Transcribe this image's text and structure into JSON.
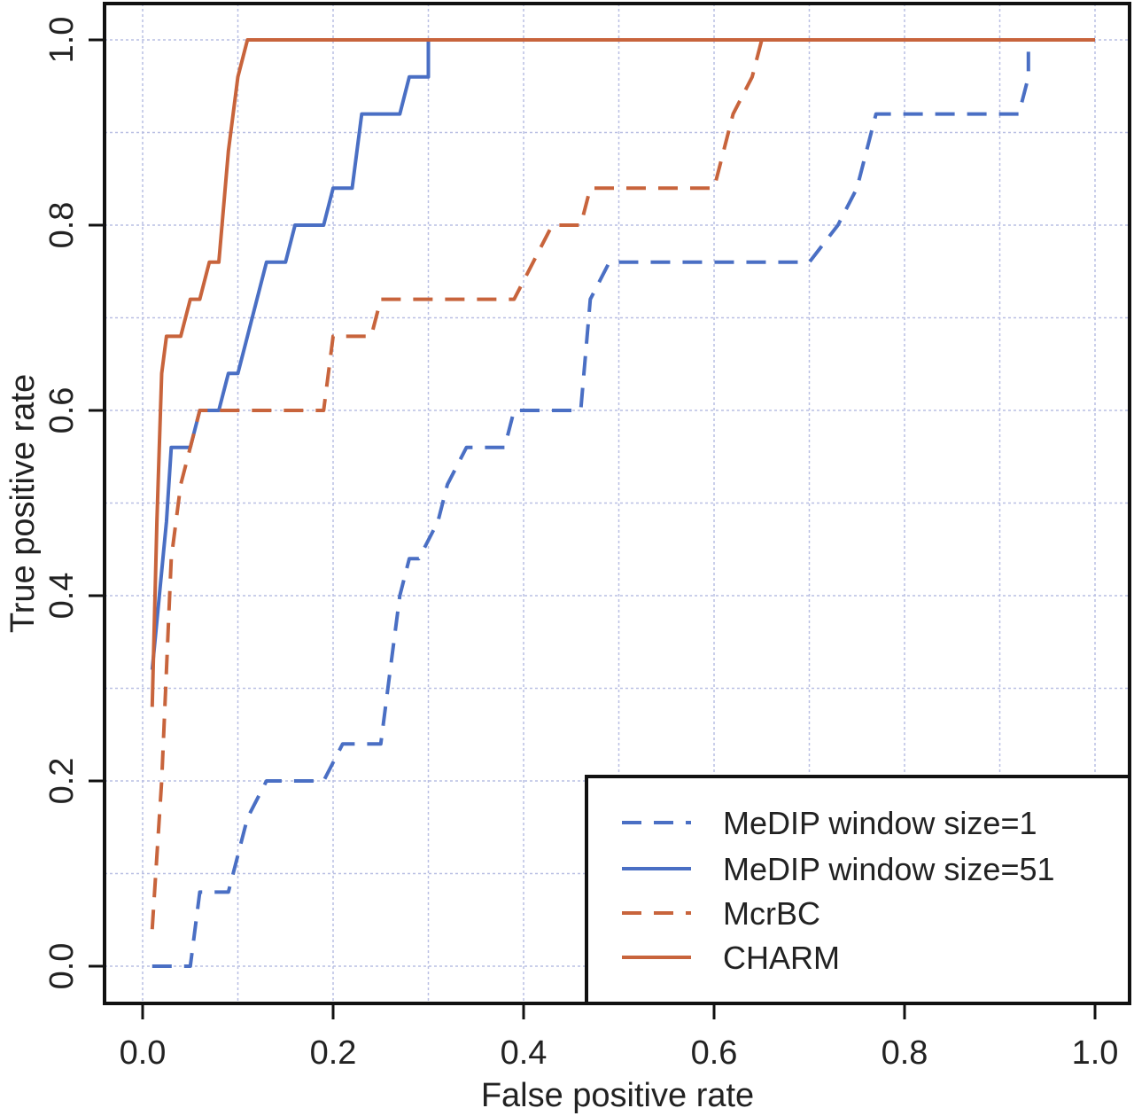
{
  "chart_data": {
    "type": "line",
    "title": "",
    "xlabel": "False positive rate",
    "ylabel": "True positive rate",
    "xlim": [
      0.0,
      1.0
    ],
    "ylim": [
      0.0,
      1.0
    ],
    "x_ticks": [
      "0.0",
      "0.2",
      "0.4",
      "0.6",
      "0.8",
      "1.0"
    ],
    "y_ticks": [
      "0.0",
      "0.2",
      "0.4",
      "0.6",
      "0.8",
      "1.0"
    ],
    "grid": true,
    "grid_step": 0.1,
    "legend_position": "bottom-right",
    "series": [
      {
        "name": "MeDIP window size=1",
        "color": "#4a6fc4",
        "dashed": true,
        "x": [
          0.01,
          0.05,
          0.06,
          0.09,
          0.11,
          0.13,
          0.19,
          0.21,
          0.25,
          0.26,
          0.27,
          0.28,
          0.29,
          0.31,
          0.32,
          0.34,
          0.35,
          0.38,
          0.39,
          0.41,
          0.46,
          0.47,
          0.49,
          0.7,
          0.73,
          0.75,
          0.77,
          0.79,
          0.92,
          0.93,
          0.93
        ],
        "y": [
          0.0,
          0.0,
          0.08,
          0.08,
          0.16,
          0.2,
          0.2,
          0.24,
          0.24,
          0.32,
          0.4,
          0.44,
          0.44,
          0.48,
          0.52,
          0.56,
          0.56,
          0.56,
          0.6,
          0.6,
          0.6,
          0.72,
          0.76,
          0.76,
          0.8,
          0.84,
          0.92,
          0.92,
          0.92,
          0.96,
          1.0
        ]
      },
      {
        "name": "MeDIP window size=51",
        "color": "#4a6fc4",
        "dashed": false,
        "x": [
          0.01,
          0.025,
          0.03,
          0.05,
          0.06,
          0.08,
          0.09,
          0.1,
          0.11,
          0.13,
          0.14,
          0.15,
          0.16,
          0.17,
          0.18,
          0.19,
          0.2,
          0.21,
          0.22,
          0.23,
          0.24,
          0.25,
          0.27,
          0.28,
          0.29,
          0.3,
          0.3
        ],
        "y": [
          0.32,
          0.48,
          0.56,
          0.56,
          0.6,
          0.6,
          0.64,
          0.64,
          0.68,
          0.76,
          0.76,
          0.76,
          0.8,
          0.8,
          0.8,
          0.8,
          0.84,
          0.84,
          0.84,
          0.92,
          0.92,
          0.92,
          0.92,
          0.96,
          0.96,
          0.96,
          1.0
        ]
      },
      {
        "name": "McrBC",
        "color": "#c8643c",
        "dashed": true,
        "x": [
          0.01,
          0.02,
          0.03,
          0.04,
          0.05,
          0.06,
          0.19,
          0.2,
          0.24,
          0.25,
          0.39,
          0.41,
          0.43,
          0.46,
          0.47,
          0.6,
          0.62,
          0.64,
          0.65,
          1.0
        ],
        "y": [
          0.04,
          0.2,
          0.44,
          0.52,
          0.56,
          0.6,
          0.6,
          0.68,
          0.68,
          0.72,
          0.72,
          0.76,
          0.8,
          0.8,
          0.84,
          0.84,
          0.92,
          0.96,
          1.0,
          1.0
        ]
      },
      {
        "name": "CHARM",
        "color": "#c8643c",
        "dashed": false,
        "x": [
          0.01,
          0.015,
          0.02,
          0.025,
          0.03,
          0.04,
          0.05,
          0.06,
          0.07,
          0.08,
          0.09,
          0.1,
          0.11,
          1.0
        ],
        "y": [
          0.28,
          0.48,
          0.64,
          0.68,
          0.68,
          0.68,
          0.72,
          0.72,
          0.76,
          0.76,
          0.88,
          0.96,
          1.0,
          1.0
        ]
      }
    ]
  }
}
